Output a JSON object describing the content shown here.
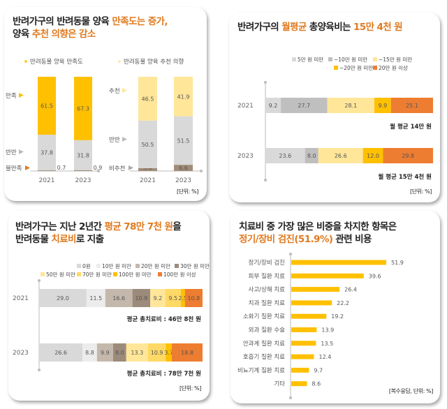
{
  "panel1": {
    "title_parts": [
      "반려가구의 반려동물 양육 ",
      "만족도는 증가,",
      "양육 ",
      "추천 의향은 감소"
    ],
    "unit": "[단위: %]"
  },
  "panel2": {
    "title_parts": [
      "반려가구의 ",
      "월평균",
      " 총양육비는 ",
      "15만 4천 원"
    ],
    "unit": "[단위: %]"
  },
  "panel3": {
    "title_parts": [
      "반려가구는 지난 2년간 ",
      "평균 78만 7천 원",
      "을",
      "반려동물 ",
      "치료비",
      "로 지출"
    ],
    "unit": "[단위: %]"
  },
  "panel4": {
    "title_parts": [
      "치료비 중 가장 많은 비중을 차지한 항목은",
      "정기/장비 검진(51.9%)",
      " 관련 비용"
    ],
    "unit": "[복수응답, 단위: %]"
  },
  "chart_data": [
    {
      "type": "bar",
      "stacked": true,
      "title": "반려동물 양육 만족도",
      "categories": [
        "2021",
        "2023"
      ],
      "series": [
        {
          "name": "불만족",
          "values": [
            0.7,
            0.9
          ],
          "color": "#a08c78"
        },
        {
          "name": "반반",
          "values": [
            37.8,
            31.8
          ],
          "color": "#d9d9d9"
        },
        {
          "name": "만족",
          "values": [
            61.5,
            67.3
          ],
          "color": "#ffc000"
        }
      ],
      "ylim": [
        0,
        100
      ]
    },
    {
      "type": "bar",
      "stacked": true,
      "title": "반려동물 양육 추천 의향",
      "categories": [
        "2021",
        "2023"
      ],
      "series": [
        {
          "name": "비추천",
          "values": [
            3.0,
            6.6
          ],
          "color": "#a08c78"
        },
        {
          "name": "반반",
          "values": [
            50.5,
            51.5
          ],
          "color": "#d9d9d9"
        },
        {
          "name": "추천",
          "values": [
            46.5,
            41.9
          ],
          "color": "#ffe699"
        }
      ],
      "ylim": [
        0,
        100
      ]
    },
    {
      "type": "bar",
      "orientation": "horizontal",
      "stacked": true,
      "title": "반려가구의 월평균 총양육비",
      "categories": [
        "2021",
        "2023"
      ],
      "series": [
        {
          "name": "5만 원 미만",
          "values": [
            9.2,
            23.6
          ],
          "color": "#d9d9d9"
        },
        {
          "name": "~10만 원 미만",
          "values": [
            27.7,
            8.0
          ],
          "color": "#bfbfbf"
        },
        {
          "name": "~15만 원 미만",
          "values": [
            28.1,
            26.6
          ],
          "color": "#ffe699"
        },
        {
          "name": "~20만 원 미만",
          "values": [
            9.9,
            12.0
          ],
          "color": "#ffc000"
        },
        {
          "name": "20만 원 이상",
          "values": [
            25.1,
            29.8
          ],
          "color": "#ed7d31"
        }
      ],
      "annotations": [
        "월 평균 14만 원",
        "월 평균 15만 4천 원"
      ],
      "xlim": [
        0,
        100
      ]
    },
    {
      "type": "bar",
      "orientation": "horizontal",
      "stacked": true,
      "title": "반려동물 치료비 지출",
      "categories": [
        "2021",
        "2023"
      ],
      "series": [
        {
          "name": "0원",
          "values": [
            29.0,
            26.6
          ],
          "color": "#d9d9d9"
        },
        {
          "name": "10만 원 미만",
          "values": [
            11.5,
            8.8
          ],
          "color": "#ececec"
        },
        {
          "name": "20만 원 미만",
          "values": [
            16.6,
            9.9
          ],
          "color": "#c4b8ac"
        },
        {
          "name": "30만 원 미만",
          "values": [
            10.9,
            8.0
          ],
          "color": "#9c8b7a"
        },
        {
          "name": "50만 원 미만",
          "values": [
            9.2,
            13.3
          ],
          "color": "#ffe699"
        },
        {
          "name": "70만 원 미만",
          "values": [
            9.5,
            10.9
          ],
          "color": "#ffd966"
        },
        {
          "name": "100만 원 미만",
          "values": [
            2.5,
            3.7
          ],
          "color": "#ffc000"
        },
        {
          "name": "100만 원 이상",
          "values": [
            10.8,
            18.8
          ],
          "color": "#ed7d31"
        }
      ],
      "annotations": [
        "평균 총치료비 : 46만 8천 원",
        "평균 총치료비 : 78만 7천 원"
      ],
      "xlim": [
        0,
        100
      ]
    },
    {
      "type": "bar",
      "orientation": "horizontal",
      "title": "치료비 중 가장 많은 비중을 차지한 항목",
      "categories": [
        "정기/장비 검진",
        "피부 질환 치료",
        "사고/상해 치료",
        "치과 질환 치료",
        "소화기 질환 치료",
        "외과 질환 수술",
        "안과계 질환 치료",
        "호흡기 질환 치료",
        "비뇨기계 질환 치료",
        "기타"
      ],
      "values": [
        51.9,
        39.6,
        26.4,
        22.2,
        19.2,
        13.9,
        13.5,
        12.4,
        9.7,
        8.6
      ],
      "color": "#ffc000",
      "xlim": [
        0,
        60
      ]
    }
  ]
}
